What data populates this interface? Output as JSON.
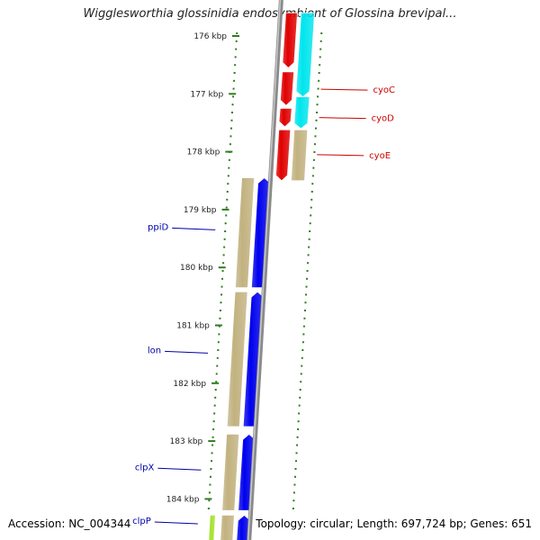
{
  "title": "Wigglesworthia glossinidia endosymbiont of Glossina brevipal...",
  "footer": {
    "accession": "Accession: NC_004344",
    "summary": "Topology: circular; Length: 697,724 bp; Genes: 651"
  },
  "colors": {
    "backbone": "#8a8a8a",
    "tick": "#2e7d1e",
    "tick_label": "#222222",
    "red_gene": "#e00000",
    "cyan_gene": "#00e5ee",
    "blue_gene": "#0000ee",
    "khaki_gene": "#c2b280",
    "lime_gene": "#a6e22e",
    "label_red": "#cc0000",
    "label_blue": "#0000aa"
  },
  "ticks": [
    {
      "label": "176 kbp",
      "kbp": 176
    },
    {
      "label": "177 kbp",
      "kbp": 177
    },
    {
      "label": "178 kbp",
      "kbp": 178
    },
    {
      "label": "179 kbp",
      "kbp": 179
    },
    {
      "label": "180 kbp",
      "kbp": 180
    },
    {
      "label": "181 kbp",
      "kbp": 181
    },
    {
      "label": "182 kbp",
      "kbp": 182
    },
    {
      "label": "183 kbp",
      "kbp": 183
    },
    {
      "label": "184 kbp",
      "kbp": 184
    }
  ],
  "genes": [
    {
      "name": "",
      "start": 175.6,
      "end": 176.55,
      "lane": "outer_red",
      "color": "red"
    },
    {
      "name": "",
      "start": 176.62,
      "end": 177.2,
      "lane": "outer_red",
      "color": "red"
    },
    {
      "name": "",
      "start": 177.25,
      "end": 177.57,
      "lane": "outer_red",
      "color": "red"
    },
    {
      "name": "",
      "start": 177.62,
      "end": 178.5,
      "lane": "outer_red",
      "color": "red"
    },
    {
      "name": "cyoC",
      "start": 175.6,
      "end": 177.05,
      "lane": "outer_cyan",
      "color": "cyan"
    },
    {
      "name": "cyoD",
      "start": 177.05,
      "end": 177.6,
      "lane": "outer_cyan",
      "color": "cyan"
    },
    {
      "name": "cyoE",
      "start": 177.62,
      "end": 178.5,
      "lane": "outer_cyan",
      "color": "khaki"
    },
    {
      "name": "ppiD",
      "start": 178.45,
      "end": 180.35,
      "lane": "inner_khaki",
      "color": "khaki"
    },
    {
      "name": "",
      "start": 178.45,
      "end": 180.35,
      "lane": "inner_blue",
      "color": "blue"
    },
    {
      "name": "lon",
      "start": 180.42,
      "end": 182.75,
      "lane": "inner_khaki",
      "color": "khaki"
    },
    {
      "name": "",
      "start": 180.42,
      "end": 182.75,
      "lane": "inner_blue",
      "color": "blue"
    },
    {
      "name": "clpX",
      "start": 182.88,
      "end": 184.2,
      "lane": "inner_khaki",
      "color": "khaki"
    },
    {
      "name": "",
      "start": 182.88,
      "end": 184.2,
      "lane": "inner_blue",
      "color": "blue"
    },
    {
      "name": "clpP",
      "start": 184.28,
      "end": 184.8,
      "lane": "inner_khaki",
      "color": "khaki"
    },
    {
      "name": "",
      "start": 184.28,
      "end": 184.8,
      "lane": "inner_lime",
      "color": "lime"
    },
    {
      "name": "",
      "start": 184.28,
      "end": 184.8,
      "lane": "inner_blue",
      "color": "blue"
    }
  ],
  "gene_labels": [
    {
      "text": "cyoC",
      "kbp": 176.92,
      "side": "right"
    },
    {
      "text": "cyoD",
      "kbp": 177.41,
      "side": "right"
    },
    {
      "text": "cyoE",
      "kbp": 178.05,
      "side": "right"
    },
    {
      "text": "ppiD",
      "kbp": 179.35,
      "side": "left"
    },
    {
      "text": "lon",
      "kbp": 181.48,
      "side": "left"
    },
    {
      "text": "clpX",
      "kbp": 183.5,
      "side": "left"
    },
    {
      "text": "clpP",
      "kbp": 184.43,
      "side": "left"
    }
  ]
}
